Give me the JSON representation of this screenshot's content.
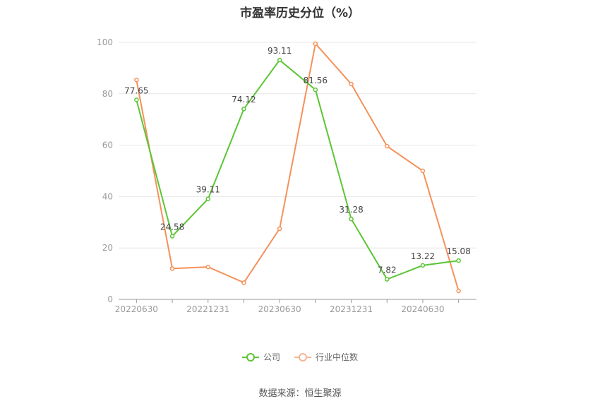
{
  "chart_data": {
    "type": "line",
    "title": "市盈率历史分位（%）",
    "categories": [
      "20220630",
      "",
      "20221231",
      "",
      "20230630",
      "",
      "20231231",
      "",
      "20240630",
      ""
    ],
    "ylim": [
      0,
      100
    ],
    "yticks": [
      0,
      20,
      40,
      60,
      80,
      100
    ],
    "grid": true,
    "legend_position": "bottom",
    "series": [
      {
        "name": "公司",
        "color": "#5cc535",
        "values": [
          77.65,
          24.58,
          39.11,
          74.12,
          93.11,
          81.56,
          31.28,
          7.82,
          13.22,
          15.08
        ],
        "labels": [
          "77.65",
          "24.58",
          "39.11",
          "74.12",
          "93.11",
          "81.56",
          "31.28",
          "7.82",
          "13.22",
          "15.08"
        ]
      },
      {
        "name": "行业中位数",
        "color": "#f5915a",
        "values": [
          85.4,
          12.0,
          12.6,
          6.5,
          27.5,
          99.5,
          83.8,
          59.6,
          50.0,
          3.3
        ]
      }
    ]
  },
  "source": "数据来源：恒生聚源"
}
